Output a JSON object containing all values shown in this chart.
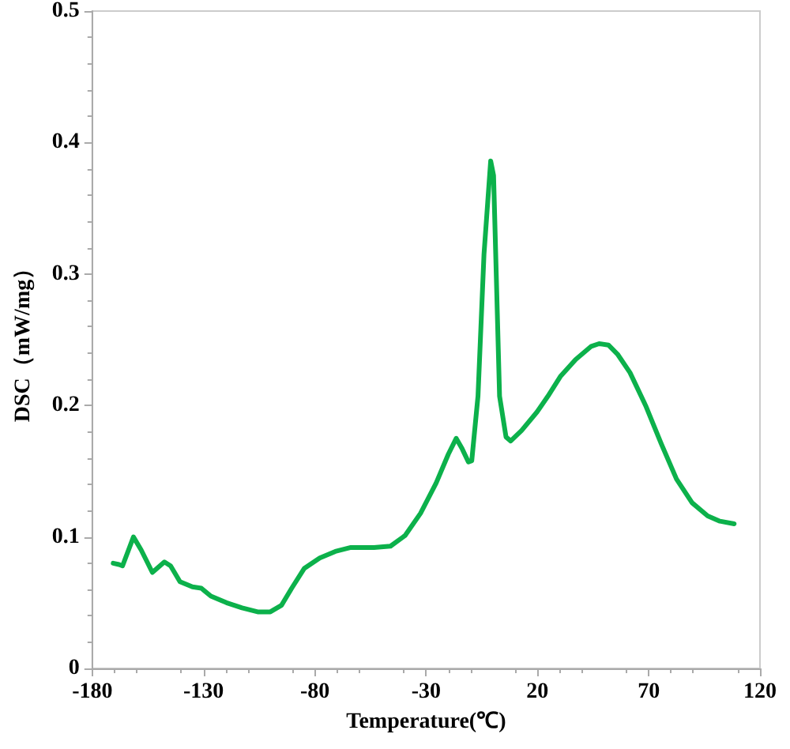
{
  "chart_data": {
    "type": "line",
    "xlabel": "Temperature(℃)",
    "ylabel": "DSC（mW/mg）",
    "xlim": [
      -180,
      120
    ],
    "xticks": [
      -180,
      -130,
      -80,
      -30,
      20,
      70,
      120
    ],
    "ylim": [
      0,
      0.5
    ],
    "yticks": [
      0,
      0.1,
      0.2,
      0.3,
      0.4,
      0.5
    ],
    "grid": false,
    "marker": "none",
    "line_style": "solid",
    "series": [
      {
        "color": "#0cb14b",
        "x": [
          -170.6,
          -168,
          -166.4,
          -161.5,
          -158,
          -153,
          -147.6,
          -144.8,
          -140.6,
          -135,
          -131,
          -126.7,
          -119.7,
          -112.7,
          -105.7,
          -100,
          -95,
          -90.4,
          -84.8,
          -77.8,
          -70.8,
          -63.8,
          -53.4,
          -46,
          -39.5,
          -32.5,
          -25.5,
          -20,
          -16.5,
          -13.8,
          -11,
          -9.5,
          -6.7,
          -4,
          -1,
          0.3,
          3,
          5.9,
          8,
          12.9,
          19.8,
          24.7,
          30.3,
          37.2,
          44.2,
          47.7,
          51.9,
          56,
          61.6,
          68.6,
          75.6,
          82.5,
          89.5,
          96.5,
          102,
          108.4
        ],
        "values": [
          0.08,
          0.079,
          0.078,
          0.1,
          0.09,
          0.073,
          0.081,
          0.078,
          0.066,
          0.062,
          0.061,
          0.055,
          0.05,
          0.046,
          0.043,
          0.043,
          0.048,
          0.061,
          0.076,
          0.084,
          0.089,
          0.092,
          0.092,
          0.093,
          0.101,
          0.118,
          0.141,
          0.163,
          0.175,
          0.167,
          0.157,
          0.158,
          0.207,
          0.315,
          0.386,
          0.375,
          0.207,
          0.176,
          0.173,
          0.181,
          0.195,
          0.207,
          0.222,
          0.235,
          0.245,
          0.247,
          0.246,
          0.239,
          0.225,
          0.2,
          0.171,
          0.144,
          0.126,
          0.116,
          0.112,
          0.11
        ]
      }
    ]
  }
}
